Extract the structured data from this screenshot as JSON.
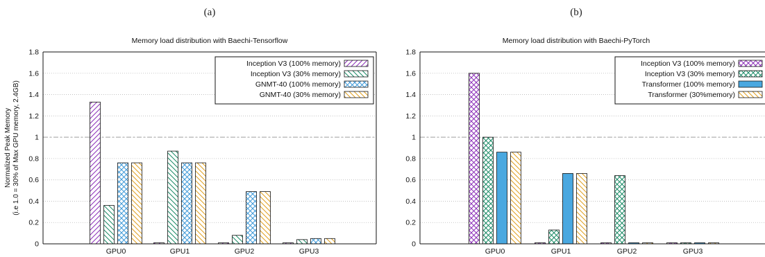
{
  "chart_data": [
    {
      "type": "bar",
      "panel_label": "(a)",
      "title": "Memory load distribution with Baechi-Tensorflow",
      "ylabel_line1": "Normalized Peak Memory",
      "ylabel_line2": "(i.e 1.0 = 30% of Max GPU memory, 2.4GB)",
      "xlabel": "",
      "ylim": [
        0,
        1.8
      ],
      "yticks": [
        "0",
        "0.2",
        "0.4",
        "0.6",
        "0.8",
        "1",
        "1.2",
        "1.4",
        "1.6",
        "1.8"
      ],
      "reference_line": 1,
      "grid": true,
      "legend_position": "top-right",
      "categories": [
        "GPU0",
        "GPU1",
        "GPU2",
        "GPU3"
      ],
      "series": [
        {
          "name": "Inception V3 (100% memory)",
          "values": [
            1.33,
            0.01,
            0.01,
            0.01
          ],
          "color": "#8b2fb8",
          "pattern": "diag-up"
        },
        {
          "name": "Inception V3 (30% memory)",
          "values": [
            0.36,
            0.87,
            0.08,
            0.04
          ],
          "color": "#1a8a66",
          "pattern": "diag-down"
        },
        {
          "name": "GNMT-40 (100% memory)",
          "values": [
            0.76,
            0.76,
            0.49,
            0.05
          ],
          "color": "#3f9ad8",
          "pattern": "crosshatch"
        },
        {
          "name": "GNMT-40  (30% memory)",
          "values": [
            0.76,
            0.76,
            0.49,
            0.05
          ],
          "color": "#e0a020",
          "pattern": "diag-down"
        }
      ]
    },
    {
      "type": "bar",
      "panel_label": "(b)",
      "title": "Memory load distribution with Baechi-PyTorch",
      "xlabel": "",
      "ylim": [
        0,
        1.8
      ],
      "yticks": [
        "0",
        "0.2",
        "0.4",
        "0.6",
        "0.8",
        "1",
        "1.2",
        "1.4",
        "1.6",
        "1.8"
      ],
      "reference_line": 1,
      "grid": true,
      "legend_position": "top-right",
      "categories": [
        "GPU0",
        "GPU1",
        "GPU2",
        "GPU3"
      ],
      "series": [
        {
          "name": "Inception V3 (100% memory)",
          "values": [
            1.6,
            0.01,
            0.01,
            0.01
          ],
          "color": "#8b2fb8",
          "pattern": "crosshatch"
        },
        {
          "name": "Inception V3 (30% memory)",
          "values": [
            1.0,
            0.13,
            0.64,
            0.01
          ],
          "color": "#1a8a66",
          "pattern": "crosshatch"
        },
        {
          "name": "Transformer (100% memory)",
          "values": [
            0.86,
            0.66,
            0.01,
            0.01
          ],
          "color": "#4aa8e0",
          "pattern": "solid"
        },
        {
          "name": "Transformer (30%memory)",
          "values": [
            0.86,
            0.66,
            0.01,
            0.01
          ],
          "color": "#e0a020",
          "pattern": "diag-down"
        }
      ]
    }
  ]
}
